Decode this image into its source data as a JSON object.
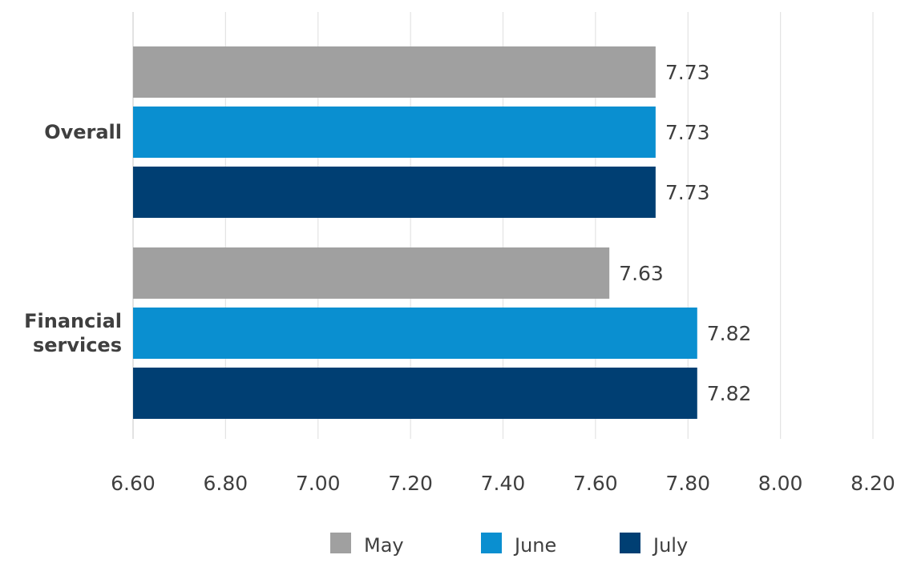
{
  "chart_data": {
    "type": "bar",
    "orientation": "horizontal",
    "categories": [
      [
        "Overall"
      ],
      [
        "Financial",
        "services"
      ]
    ],
    "series": [
      {
        "name": "May",
        "color": "#a0a0a0",
        "values": [
          7.73,
          7.63
        ],
        "labels": [
          "7.73",
          "7.63"
        ]
      },
      {
        "name": "June",
        "color": "#0a8fd0",
        "values": [
          7.73,
          7.82
        ],
        "labels": [
          "7.73",
          "7.82"
        ]
      },
      {
        "name": "July",
        "color": "#003f73",
        "values": [
          7.73,
          7.82
        ],
        "labels": [
          "7.73",
          "7.82"
        ]
      }
    ],
    "xlim": [
      6.6,
      8.2
    ],
    "xticks": [
      "6.60",
      "6.80",
      "7.00",
      "7.20",
      "7.40",
      "7.60",
      "7.80",
      "8.00",
      "8.20"
    ],
    "grid": true,
    "legend_position": "bottom"
  }
}
